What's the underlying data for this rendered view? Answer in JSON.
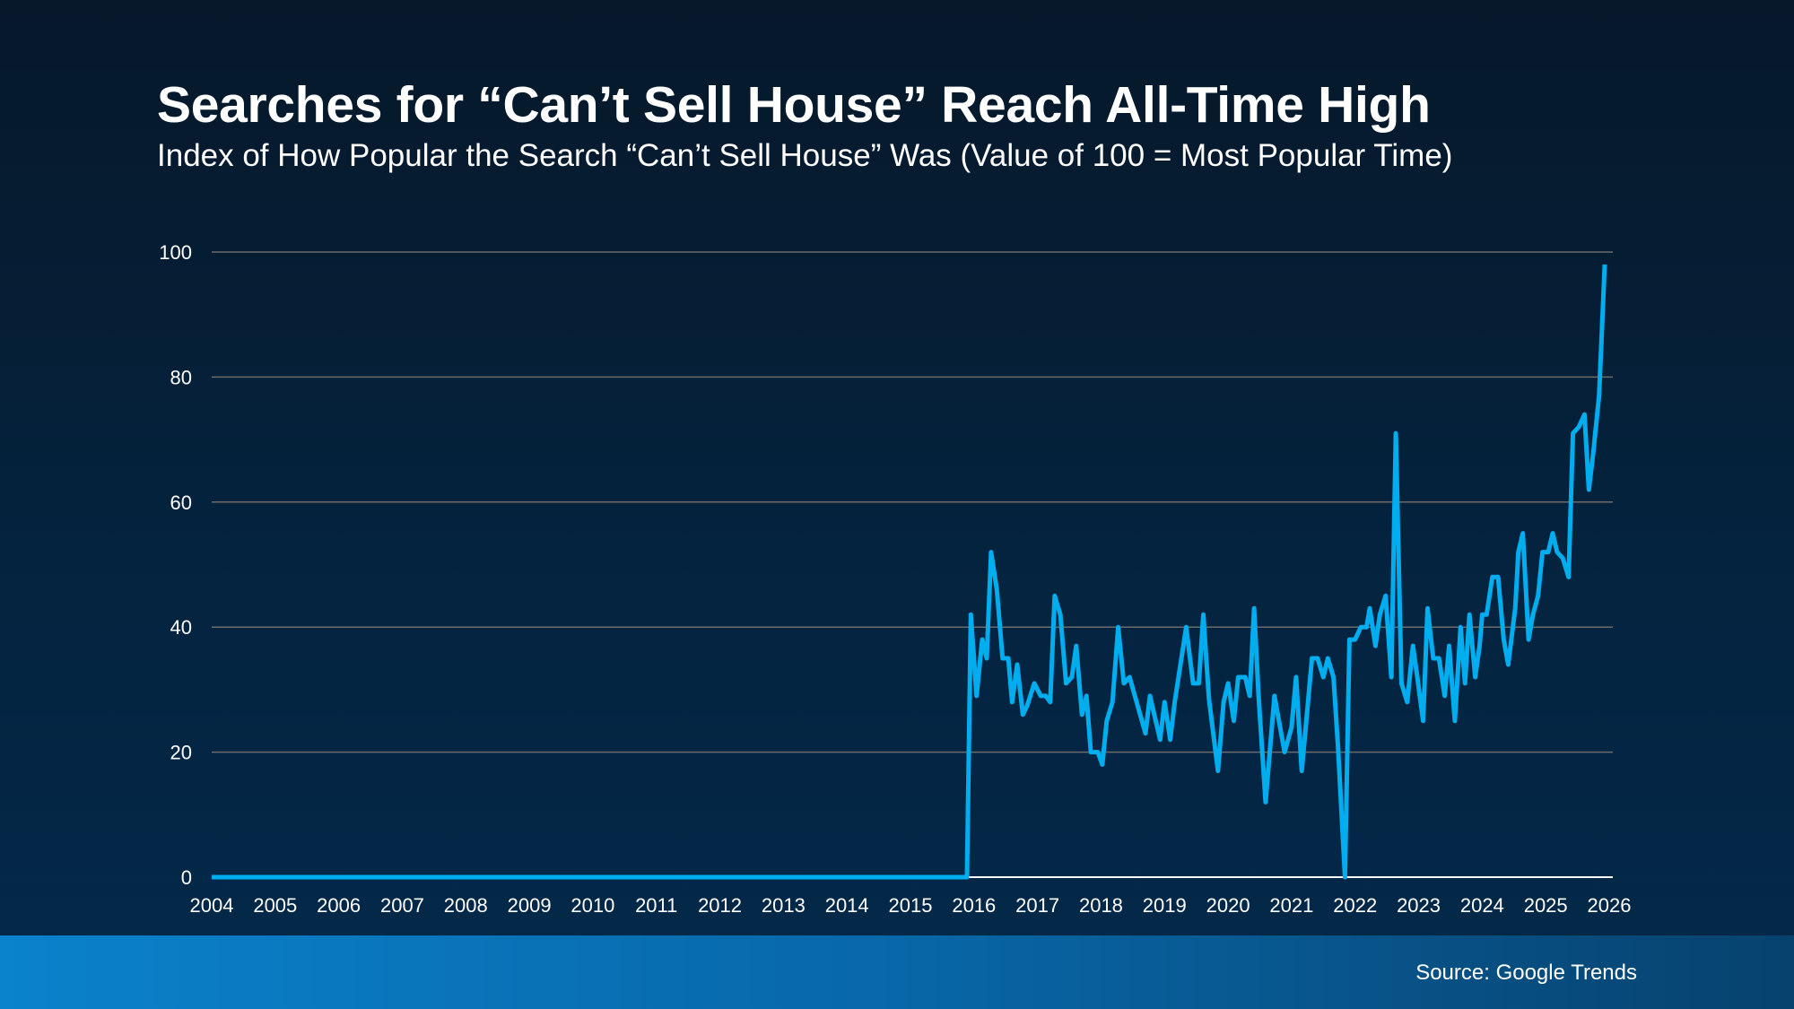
{
  "title": "Searches for “Can’t Sell House” Reach All-Time High",
  "subtitle": "Index of How Popular the Search “Can’t Sell House” Was (Value of 100 = Most Popular Time)",
  "source": "Source: Google Trends",
  "colors": {
    "line": "#00aeef",
    "grid": "#6b6b6b",
    "axis": "#ffffff"
  },
  "chart_data": {
    "type": "line",
    "title": "Searches for “Can’t Sell House” Reach All-Time High",
    "xlabel": "",
    "ylabel": "",
    "xlim": [
      2004,
      2026
    ],
    "ylim": [
      0,
      100
    ],
    "grid": true,
    "x_ticks": [
      "2004",
      "2005",
      "2006",
      "2007",
      "2008",
      "2009",
      "2010",
      "2011",
      "2012",
      "2013",
      "2014",
      "2015",
      "2016",
      "2017",
      "2018",
      "2019",
      "2020",
      "2021",
      "2022",
      "2023",
      "2024",
      "2025",
      "2026"
    ],
    "y_ticks": [
      0,
      20,
      40,
      60,
      80,
      100
    ],
    "series": [
      {
        "points": [
          [
            2004.0,
            0
          ],
          [
            2015.89,
            0
          ],
          [
            2015.95,
            42
          ],
          [
            2016.04,
            29
          ],
          [
            2016.13,
            38
          ],
          [
            2016.2,
            35
          ],
          [
            2016.27,
            52
          ],
          [
            2016.36,
            46
          ],
          [
            2016.45,
            35
          ],
          [
            2016.54,
            35
          ],
          [
            2016.6,
            28
          ],
          [
            2016.68,
            34
          ],
          [
            2016.77,
            26
          ],
          [
            2016.84,
            27.5
          ],
          [
            2016.95,
            31
          ],
          [
            2017.05,
            29
          ],
          [
            2017.13,
            29
          ],
          [
            2017.2,
            28
          ],
          [
            2017.27,
            45
          ],
          [
            2017.36,
            42
          ],
          [
            2017.45,
            31
          ],
          [
            2017.54,
            32
          ],
          [
            2017.61,
            37
          ],
          [
            2017.7,
            26
          ],
          [
            2017.77,
            29
          ],
          [
            2017.84,
            20
          ],
          [
            2017.95,
            20
          ],
          [
            2018.02,
            18
          ],
          [
            2018.09,
            25
          ],
          [
            2018.18,
            28
          ],
          [
            2018.27,
            40
          ],
          [
            2018.36,
            31
          ],
          [
            2018.45,
            32
          ],
          [
            2018.7,
            23
          ],
          [
            2018.77,
            29
          ],
          [
            2018.93,
            22
          ],
          [
            2019.0,
            28
          ],
          [
            2019.09,
            22
          ],
          [
            2019.16,
            28
          ],
          [
            2019.34,
            40
          ],
          [
            2019.45,
            31
          ],
          [
            2019.54,
            31
          ],
          [
            2019.61,
            42
          ],
          [
            2019.7,
            28.5
          ],
          [
            2019.84,
            17
          ],
          [
            2019.93,
            28
          ],
          [
            2020.0,
            31
          ],
          [
            2020.09,
            25
          ],
          [
            2020.16,
            32
          ],
          [
            2020.27,
            32
          ],
          [
            2020.34,
            29
          ],
          [
            2020.41,
            43
          ],
          [
            2020.48,
            29
          ],
          [
            2020.59,
            12
          ],
          [
            2020.73,
            29
          ],
          [
            2020.89,
            20
          ],
          [
            2021.0,
            24
          ],
          [
            2021.07,
            32
          ],
          [
            2021.16,
            17
          ],
          [
            2021.25,
            27
          ],
          [
            2021.32,
            35
          ],
          [
            2021.41,
            35
          ],
          [
            2021.5,
            32
          ],
          [
            2021.57,
            35
          ],
          [
            2021.66,
            32
          ],
          [
            2021.73,
            21
          ],
          [
            2021.84,
            0
          ],
          [
            2021.91,
            38
          ],
          [
            2022.0,
            38
          ],
          [
            2022.09,
            40
          ],
          [
            2022.18,
            40
          ],
          [
            2022.23,
            43
          ],
          [
            2022.32,
            37
          ],
          [
            2022.39,
            42
          ],
          [
            2022.48,
            45
          ],
          [
            2022.57,
            32
          ],
          [
            2022.64,
            71
          ],
          [
            2022.73,
            31
          ],
          [
            2022.82,
            28
          ],
          [
            2022.91,
            37
          ],
          [
            2022.98,
            32
          ],
          [
            2023.07,
            25
          ],
          [
            2023.14,
            43
          ],
          [
            2023.23,
            35
          ],
          [
            2023.32,
            35
          ],
          [
            2023.41,
            29
          ],
          [
            2023.48,
            37
          ],
          [
            2023.57,
            25
          ],
          [
            2023.66,
            40
          ],
          [
            2023.73,
            31
          ],
          [
            2023.8,
            42
          ],
          [
            2023.89,
            32
          ],
          [
            2023.96,
            37
          ],
          [
            2024.0,
            42
          ],
          [
            2024.07,
            42
          ],
          [
            2024.16,
            48
          ],
          [
            2024.25,
            48
          ],
          [
            2024.34,
            38
          ],
          [
            2024.41,
            34
          ],
          [
            2024.52,
            43
          ],
          [
            2024.57,
            52
          ],
          [
            2024.64,
            55
          ],
          [
            2024.73,
            38
          ],
          [
            2024.8,
            42
          ],
          [
            2024.88,
            45
          ],
          [
            2024.95,
            52
          ],
          [
            2025.04,
            52
          ],
          [
            2025.11,
            55
          ],
          [
            2025.18,
            52
          ],
          [
            2025.27,
            51
          ],
          [
            2025.36,
            48
          ],
          [
            2025.43,
            71
          ],
          [
            2025.52,
            72
          ],
          [
            2025.61,
            74
          ],
          [
            2025.68,
            62
          ],
          [
            2025.75,
            68
          ],
          [
            2025.84,
            77
          ],
          [
            2025.93,
            98
          ]
        ]
      }
    ]
  }
}
